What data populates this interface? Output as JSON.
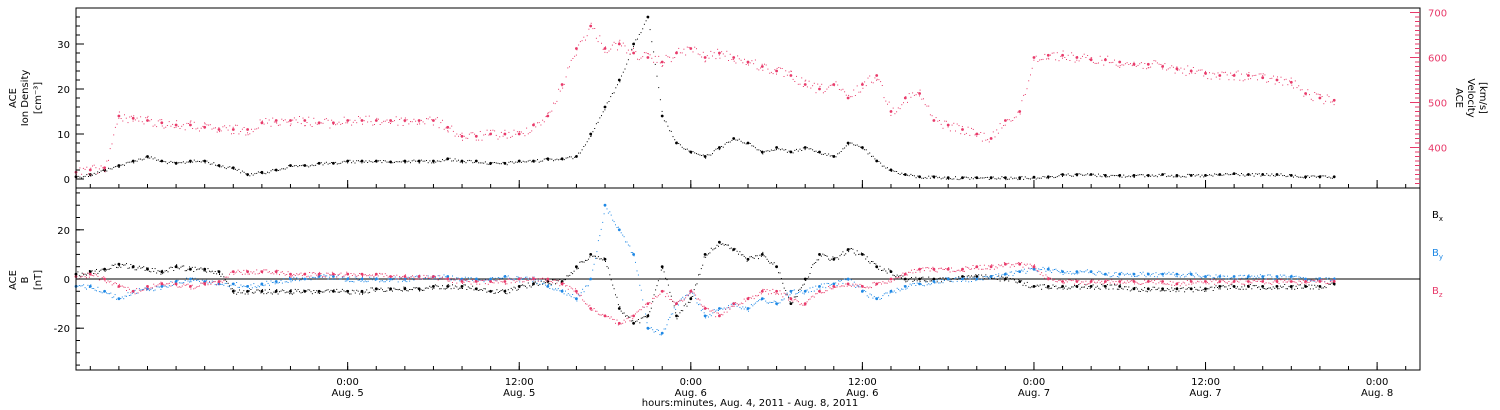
{
  "colors": {
    "black": "#000000",
    "pink": "#e83a6a",
    "blue": "#1e88e5"
  },
  "x_axis": {
    "title": "hours:minutes, Aug.  4, 2011 - Aug.  8, 2011",
    "range_hours": [
      -19.0,
      75.0
    ],
    "ticks": [
      {
        "t": 0,
        "time": "0:00",
        "date": "Aug. 5"
      },
      {
        "t": 12,
        "time": "12:00",
        "date": "Aug. 5"
      },
      {
        "t": 24,
        "time": "0:00",
        "date": "Aug. 6"
      },
      {
        "t": 36,
        "time": "12:00",
        "date": "Aug. 6"
      },
      {
        "t": 48,
        "time": "0:00",
        "date": "Aug. 7"
      },
      {
        "t": 60,
        "time": "12:00",
        "date": "Aug. 7"
      },
      {
        "t": 72,
        "time": "0:00",
        "date": "Aug. 8"
      }
    ]
  },
  "top_panel": {
    "left_label": [
      "ACE",
      "Ion Density",
      "[cm⁻³]"
    ],
    "right_label": [
      "ACE",
      "Velocity",
      "[km/s]"
    ],
    "left_ticks": [
      "0",
      "10",
      "20",
      "30"
    ],
    "right_ticks": [
      "400",
      "500",
      "600",
      "700"
    ]
  },
  "bottom_panel": {
    "left_label": [
      "ACE",
      "B",
      "[nT]"
    ],
    "left_ticks": [
      "-20",
      "0",
      "20"
    ],
    "legend": [
      {
        "label": "B",
        "sub": "x",
        "color": "#000000"
      },
      {
        "label": "B",
        "sub": "y",
        "color": "#1e88e5"
      },
      {
        "label": "B",
        "sub": "z",
        "color": "#e83a6a"
      }
    ]
  },
  "chart_data": [
    {
      "type": "scatter",
      "title": "",
      "xlabel": "hours:minutes, Aug.  4, 2011 - Aug.  8, 2011",
      "ylabel": "ACE Ion Density [cm⁻³]",
      "ylabel_right": "ACE Velocity [km/s]",
      "xlim": [
        -19.0,
        75.0
      ],
      "ylim": [
        -2,
        38
      ],
      "ylim_right": [
        310,
        710
      ],
      "grid": false,
      "series": [
        {
          "axis": "left",
          "color": "#000000",
          "x": [
            -19.0,
            -18.0,
            -17.0,
            -16.0,
            -15.0,
            -14.0,
            -13.0,
            -12.0,
            -11.0,
            -10.0,
            -9.0,
            -8.0,
            -7.0,
            -6.0,
            -5.0,
            -4.0,
            -3.0,
            -2.0,
            -1.0,
            0.0,
            1.0,
            2.0,
            3.0,
            4.0,
            5.0,
            6.0,
            7.0,
            8.0,
            9.0,
            10.0,
            11.0,
            12.0,
            13.0,
            14.0,
            15.0,
            16.0,
            17.0,
            18.0,
            19.0,
            20.0,
            21.0,
            22.0,
            23.0,
            24.0,
            25.0,
            26.0,
            27.0,
            28.0,
            29.0,
            30.0,
            31.0,
            32.0,
            33.0,
            34.0,
            35.0,
            36.0,
            37.0,
            38.0,
            39.0,
            40.0,
            41.0,
            42.0,
            43.0,
            44.0,
            45.0,
            46.0,
            47.0,
            48.0,
            49.0,
            50.0,
            51.0,
            52.0,
            53.0,
            54.0,
            55.0,
            56.0,
            57.0,
            58.0,
            59.0,
            60.0,
            61.0,
            62.0,
            63.0,
            64.0,
            65.0,
            66.0,
            67.0,
            68.0,
            69.0
          ],
          "y": [
            0.5,
            1,
            2,
            3,
            4,
            5,
            4,
            3.5,
            4,
            4,
            3,
            2.5,
            1,
            1.5,
            2,
            3,
            3,
            3.5,
            3.5,
            4,
            4,
            4,
            3.8,
            4,
            4,
            4,
            4.5,
            4,
            4,
            3.5,
            3.5,
            4,
            4,
            4.5,
            4.5,
            5,
            10,
            16,
            22,
            30,
            36,
            14,
            8,
            6,
            5,
            7,
            9,
            8,
            6,
            7,
            6,
            7,
            6,
            5,
            8,
            7,
            4,
            2,
            1,
            0.5,
            0.5,
            0.3,
            0.3,
            0.3,
            0.3,
            0.3,
            0.3,
            0.4,
            0.5,
            1,
            1,
            1,
            0.8,
            0.8,
            0.8,
            0.8,
            1,
            0.8,
            0.8,
            0.8,
            1,
            1.2,
            1,
            1,
            1,
            0.8,
            0.5,
            0.5,
            0.5
          ]
        },
        {
          "axis": "right",
          "color": "#e83a6a",
          "x": [
            -19.0,
            -18.0,
            -17.0,
            -16.0,
            -15.0,
            -14.0,
            -13.0,
            -12.0,
            -11.0,
            -10.0,
            -9.0,
            -8.0,
            -7.0,
            -6.0,
            -5.0,
            -4.0,
            -3.0,
            -2.0,
            -1.0,
            0.0,
            1.0,
            2.0,
            3.0,
            4.0,
            5.0,
            6.0,
            7.0,
            8.0,
            9.0,
            10.0,
            11.0,
            12.0,
            13.0,
            14.0,
            15.0,
            16.0,
            17.0,
            18.0,
            19.0,
            20.0,
            21.0,
            22.0,
            23.0,
            24.0,
            25.0,
            26.0,
            27.0,
            28.0,
            29.0,
            30.0,
            31.0,
            32.0,
            33.0,
            34.0,
            35.0,
            36.0,
            37.0,
            38.0,
            39.0,
            40.0,
            41.0,
            42.0,
            43.0,
            44.0,
            45.0,
            46.0,
            47.0,
            48.0,
            49.0,
            50.0,
            51.0,
            52.0,
            53.0,
            54.0,
            55.0,
            56.0,
            57.0,
            58.0,
            59.0,
            60.0,
            61.0,
            62.0,
            63.0,
            64.0,
            65.0,
            66.0,
            67.0,
            68.0,
            69.0
          ],
          "y": [
            345,
            350,
            355,
            470,
            465,
            460,
            455,
            450,
            450,
            445,
            440,
            440,
            440,
            455,
            460,
            460,
            460,
            455,
            455,
            460,
            460,
            460,
            460,
            460,
            460,
            460,
            445,
            425,
            425,
            430,
            430,
            430,
            450,
            470,
            540,
            620,
            670,
            620,
            630,
            610,
            600,
            590,
            610,
            620,
            600,
            610,
            600,
            590,
            580,
            570,
            560,
            540,
            530,
            540,
            510,
            540,
            560,
            480,
            510,
            520,
            460,
            450,
            440,
            430,
            420,
            460,
            480,
            600,
            605,
            605,
            600,
            595,
            595,
            590,
            585,
            585,
            580,
            575,
            570,
            565,
            560,
            560,
            560,
            555,
            550,
            545,
            520,
            510,
            505
          ]
        }
      ]
    },
    {
      "type": "scatter",
      "title": "",
      "xlabel": "hours:minutes, Aug.  4, 2011 - Aug.  8, 2011",
      "ylabel": "ACE B [nT]",
      "xlim": [
        -19.0,
        75.0
      ],
      "ylim": [
        -37,
        37
      ],
      "grid": false,
      "series": [
        {
          "name": "Bx",
          "color": "#000000",
          "x": [
            -19.0,
            -18.0,
            -17.0,
            -16.0,
            -15.0,
            -14.0,
            -13.0,
            -12.0,
            -11.0,
            -10.0,
            -9.0,
            -8.0,
            -7.0,
            -6.0,
            -5.0,
            -4.0,
            -3.0,
            -2.0,
            -1.0,
            0.0,
            1.0,
            2.0,
            3.0,
            4.0,
            5.0,
            6.0,
            7.0,
            8.0,
            9.0,
            10.0,
            11.0,
            12.0,
            13.0,
            14.0,
            15.0,
            16.0,
            17.0,
            18.0,
            19.0,
            20.0,
            21.0,
            22.0,
            23.0,
            24.0,
            25.0,
            26.0,
            27.0,
            28.0,
            29.0,
            30.0,
            31.0,
            32.0,
            33.0,
            34.0,
            35.0,
            36.0,
            37.0,
            38.0,
            39.0,
            40.0,
            41.0,
            42.0,
            43.0,
            44.0,
            45.0,
            46.0,
            47.0,
            48.0,
            49.0,
            50.0,
            51.0,
            52.0,
            53.0,
            54.0,
            55.0,
            56.0,
            57.0,
            58.0,
            59.0,
            60.0,
            61.0,
            62.0,
            63.0,
            64.0,
            65.0,
            66.0,
            67.0,
            68.0,
            69.0
          ],
          "y": [
            2,
            3,
            4,
            6,
            5,
            4,
            3,
            5,
            4,
            4,
            3,
            -5,
            -5,
            -5,
            -5,
            -5,
            -5,
            -5,
            -5,
            -5,
            -5,
            -4,
            -4,
            -4,
            -4,
            -3,
            -3,
            -3,
            -4,
            -5,
            -5,
            -3,
            -2,
            -1,
            -1,
            5,
            10,
            8,
            -12,
            -18,
            -15,
            5,
            -15,
            -8,
            10,
            15,
            12,
            8,
            10,
            5,
            -10,
            0,
            10,
            8,
            12,
            10,
            5,
            3,
            0,
            0,
            0,
            0,
            1,
            1,
            1,
            0,
            -1,
            -3,
            -3,
            -3,
            -3,
            -3,
            -3,
            -3,
            -4,
            -4,
            -4,
            -4,
            -4,
            -4,
            -3,
            -3,
            -3,
            -3,
            -3,
            -3,
            -3,
            -3,
            -2
          ]
        },
        {
          "name": "By",
          "color": "#1e88e5",
          "x": [
            -19.0,
            -18.0,
            -17.0,
            -16.0,
            -15.0,
            -14.0,
            -13.0,
            -12.0,
            -11.0,
            -10.0,
            -9.0,
            -8.0,
            -7.0,
            -6.0,
            -5.0,
            -4.0,
            -3.0,
            -2.0,
            -1.0,
            0.0,
            1.0,
            2.0,
            3.0,
            4.0,
            5.0,
            6.0,
            7.0,
            8.0,
            9.0,
            10.0,
            11.0,
            12.0,
            13.0,
            14.0,
            15.0,
            16.0,
            17.0,
            18.0,
            19.0,
            20.0,
            21.0,
            22.0,
            23.0,
            24.0,
            25.0,
            26.0,
            27.0,
            28.0,
            29.0,
            30.0,
            31.0,
            32.0,
            33.0,
            34.0,
            35.0,
            36.0,
            37.0,
            38.0,
            39.0,
            40.0,
            41.0,
            42.0,
            43.0,
            44.0,
            45.0,
            46.0,
            47.0,
            48.0,
            49.0,
            50.0,
            51.0,
            52.0,
            53.0,
            54.0,
            55.0,
            56.0,
            57.0,
            58.0,
            59.0,
            60.0,
            61.0,
            62.0,
            63.0,
            64.0,
            65.0,
            66.0,
            67.0,
            68.0,
            69.0
          ],
          "y": [
            -3,
            -3,
            -5,
            -8,
            -5,
            -4,
            -3,
            -1,
            0,
            -1,
            -2,
            -2,
            -3,
            -2,
            -1,
            0,
            0,
            1,
            1,
            0,
            0,
            0,
            0,
            0,
            1,
            1,
            1,
            0,
            0,
            0,
            1,
            0,
            0,
            -3,
            -5,
            -8,
            0,
            30,
            20,
            10,
            -20,
            -22,
            -10,
            -5,
            -15,
            -12,
            -10,
            -12,
            -8,
            -10,
            -5,
            -5,
            -3,
            -2,
            0,
            -5,
            -8,
            -5,
            -3,
            -2,
            -1,
            0,
            0,
            0,
            1,
            2,
            3,
            4,
            4,
            3,
            3,
            3,
            2,
            2,
            2,
            2,
            2,
            2,
            2,
            1,
            1,
            1,
            1,
            1,
            1,
            1,
            0,
            0,
            0
          ]
        },
        {
          "name": "Bz",
          "color": "#e83a6a",
          "x": [
            -19.0,
            -18.0,
            -17.0,
            -16.0,
            -15.0,
            -14.0,
            -13.0,
            -12.0,
            -11.0,
            -10.0,
            -9.0,
            -8.0,
            -7.0,
            -6.0,
            -5.0,
            -4.0,
            -3.0,
            -2.0,
            -1.0,
            0.0,
            1.0,
            2.0,
            3.0,
            4.0,
            5.0,
            6.0,
            7.0,
            8.0,
            9.0,
            10.0,
            11.0,
            12.0,
            13.0,
            14.0,
            15.0,
            16.0,
            17.0,
            18.0,
            19.0,
            20.0,
            21.0,
            22.0,
            23.0,
            24.0,
            25.0,
            26.0,
            27.0,
            28.0,
            29.0,
            30.0,
            31.0,
            32.0,
            33.0,
            34.0,
            35.0,
            36.0,
            37.0,
            38.0,
            39.0,
            40.0,
            41.0,
            42.0,
            43.0,
            44.0,
            45.0,
            46.0,
            47.0,
            48.0,
            49.0,
            50.0,
            51.0,
            52.0,
            53.0,
            54.0,
            55.0,
            56.0,
            57.0,
            58.0,
            59.0,
            60.0,
            61.0,
            62.0,
            63.0,
            64.0,
            65.0,
            66.0,
            67.0,
            68.0,
            69.0
          ],
          "y": [
            1,
            2,
            0,
            -3,
            -5,
            -3,
            -2,
            -2,
            -3,
            -2,
            -1,
            3,
            3,
            3,
            3,
            2,
            2,
            2,
            2,
            2,
            2,
            2,
            1,
            1,
            1,
            1,
            0,
            -1,
            -1,
            -1,
            -1,
            0,
            0,
            0,
            -2,
            -5,
            -12,
            -15,
            -18,
            -15,
            -10,
            -5,
            -10,
            -5,
            -12,
            -15,
            -10,
            -8,
            -5,
            -5,
            -8,
            -10,
            -5,
            -3,
            -2,
            -3,
            -2,
            0,
            2,
            4,
            4,
            4,
            4,
            5,
            5,
            6,
            6,
            5,
            0,
            -1,
            -1,
            -1,
            -1,
            -1,
            -1,
            -1,
            -1,
            -2,
            -1,
            -1,
            -1,
            -1,
            -1,
            -1,
            -1,
            -1,
            -1,
            -1,
            -1
          ]
        }
      ]
    }
  ]
}
